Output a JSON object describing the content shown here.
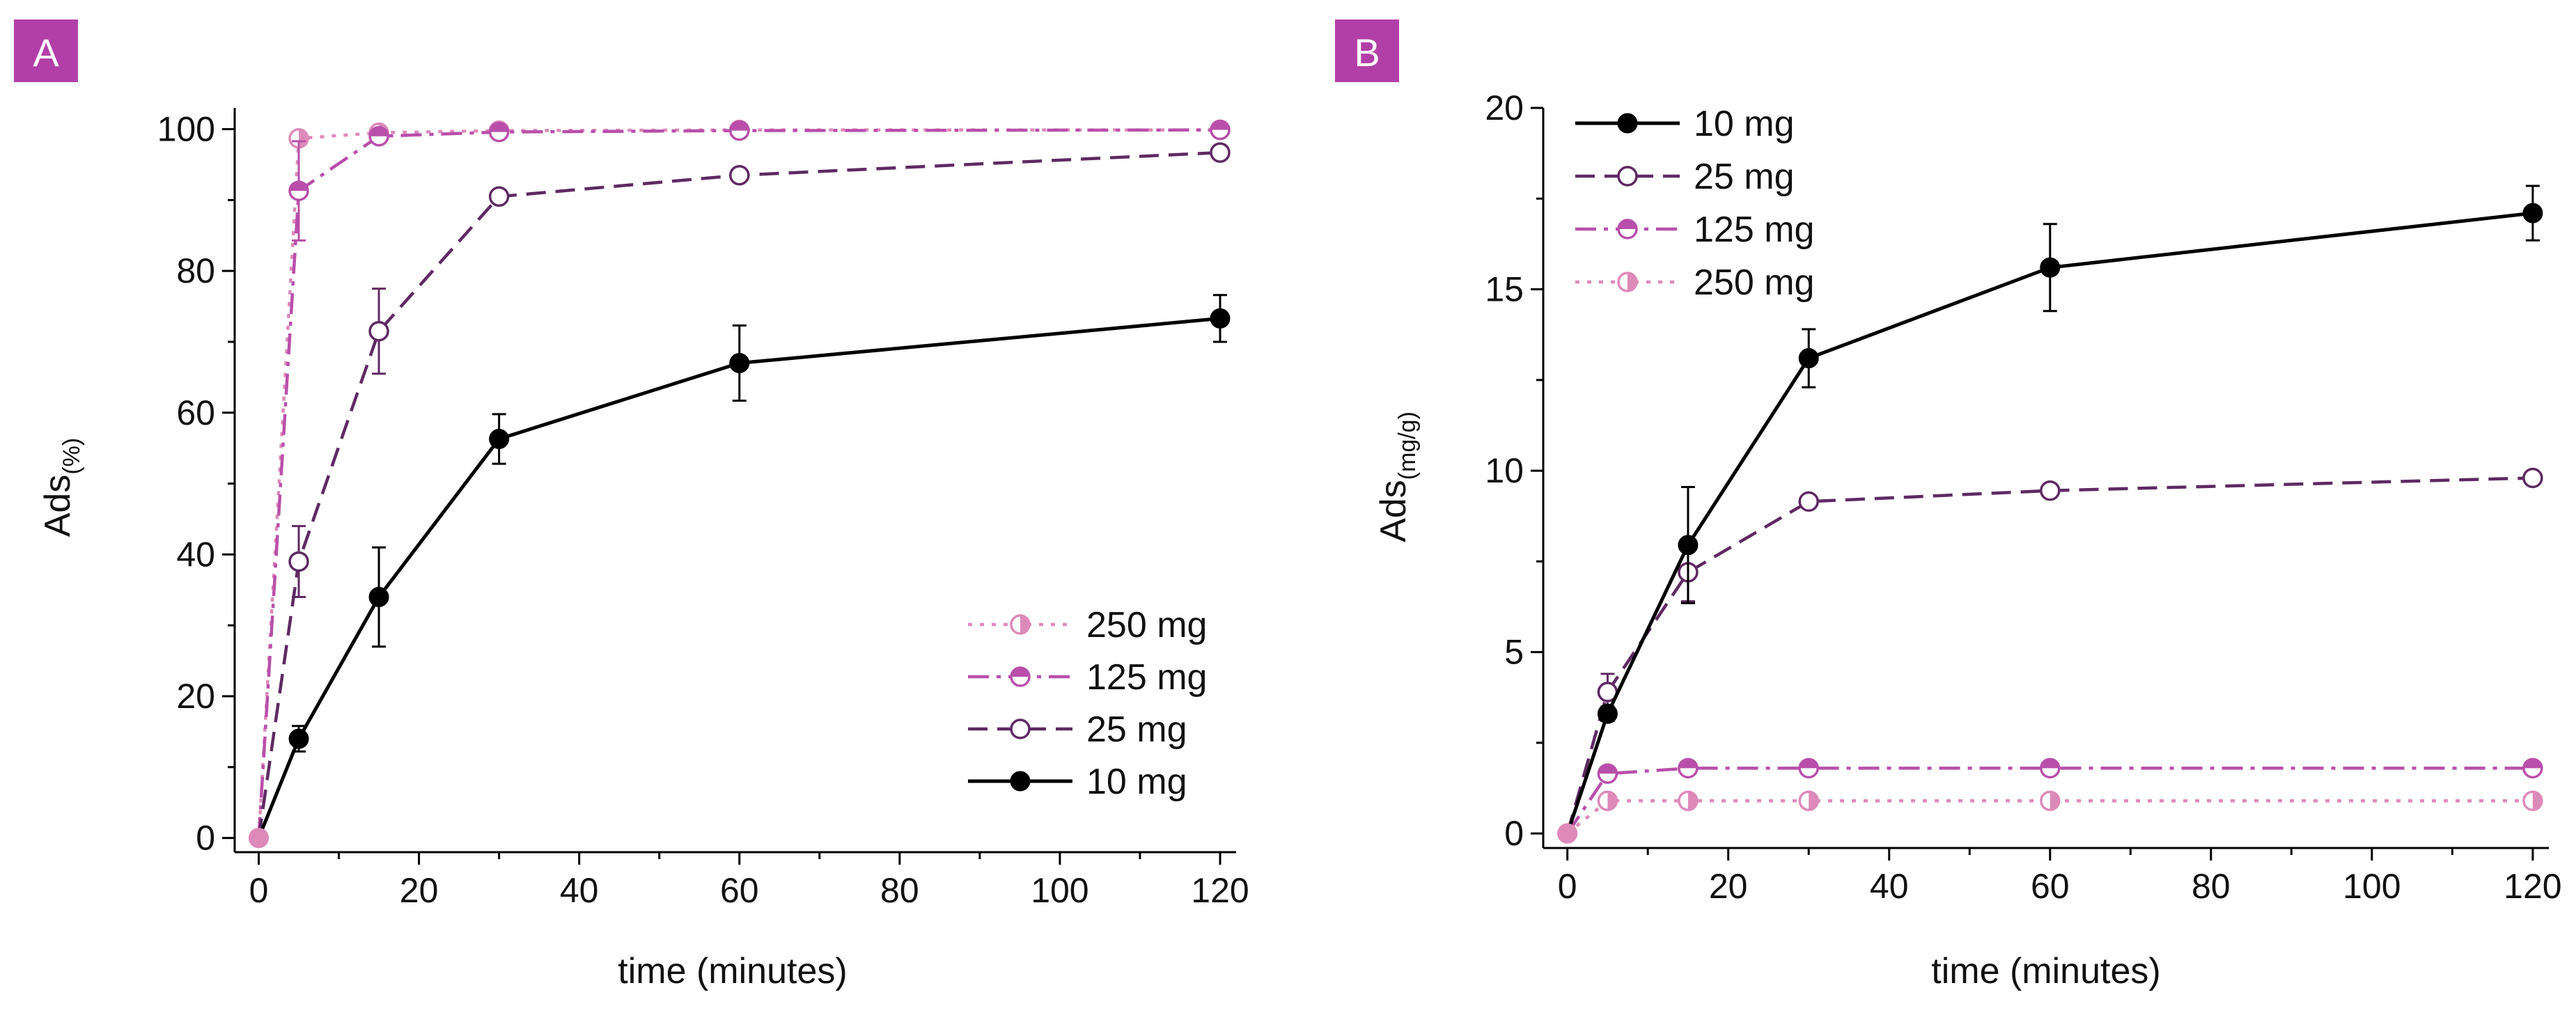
{
  "colors": {
    "10 mg": "#000000",
    "25 mg": "#5e2a62",
    "125 mg": "#b94fab",
    "250 mg": "#dd8ab9",
    "panel_badge": "#b23fa8"
  },
  "chart_data": [
    {
      "panel": "A",
      "type": "line",
      "title": "",
      "xlabel": "time (minutes)",
      "ylabel": "Ads",
      "ylabel_sub": "(%)",
      "xlim": [
        -3,
        122
      ],
      "ylim": [
        -2,
        103
      ],
      "xticks": [
        0,
        20,
        40,
        60,
        80,
        100,
        120
      ],
      "xticks_minor": [
        10,
        30,
        50,
        70,
        90,
        110
      ],
      "yticks": [
        0,
        20,
        40,
        60,
        80,
        100
      ],
      "yticks_minor": [
        10,
        30,
        50,
        70,
        90
      ],
      "grid": false,
      "legend_position": "bottom-right",
      "legend_order": [
        "250 mg",
        "125 mg",
        "25 mg",
        "10 mg"
      ],
      "series": [
        {
          "name": "10 mg",
          "style": "solid",
          "marker": "filled",
          "x": [
            0,
            5,
            15,
            30,
            60,
            120
          ],
          "y": [
            0,
            14,
            34,
            56.3,
            67,
            73.3
          ],
          "err": [
            0,
            1.8,
            7,
            3.5,
            5.3,
            3.3
          ]
        },
        {
          "name": "25 mg",
          "style": "dash",
          "marker": "open",
          "x": [
            0,
            5,
            15,
            30,
            60,
            120
          ],
          "y": [
            0,
            39,
            71.5,
            90.5,
            93.5,
            96.7
          ],
          "err": [
            0,
            5,
            6,
            0.5,
            0.4,
            0.4
          ]
        },
        {
          "name": "125 mg",
          "style": "dashdot",
          "marker": "half-top",
          "x": [
            0,
            5,
            15,
            30,
            60,
            120
          ],
          "y": [
            0,
            91.3,
            99,
            99.6,
            99.8,
            99.9
          ],
          "err": [
            0,
            7,
            0.3,
            0.2,
            0.2,
            0.2
          ]
        },
        {
          "name": "250 mg",
          "style": "dot",
          "marker": "half-right",
          "x": [
            0,
            5,
            15,
            30,
            60,
            120
          ],
          "y": [
            0,
            98.7,
            99.5,
            99.8,
            99.9,
            99.9
          ],
          "err": [
            0,
            0.3,
            0.2,
            0.2,
            0.2,
            0.2
          ]
        }
      ]
    },
    {
      "panel": "B",
      "type": "line",
      "title": "",
      "xlabel": "time (minutes)",
      "ylabel": "Ads",
      "ylabel_sub": "(mg/g)",
      "xlim": [
        -3,
        122
      ],
      "ylim": [
        -0.4,
        20
      ],
      "xticks": [
        0,
        20,
        40,
        60,
        80,
        100,
        120
      ],
      "xticks_minor": [
        10,
        30,
        50,
        70,
        90,
        110
      ],
      "yticks": [
        0,
        5,
        10,
        15,
        20
      ],
      "yticks_minor": [
        2.5,
        7.5,
        12.5,
        17.5
      ],
      "grid": false,
      "legend_position": "top-left",
      "legend_order": [
        "10 mg",
        "25 mg",
        "125 mg",
        "250 mg"
      ],
      "series": [
        {
          "name": "10 mg",
          "style": "solid",
          "marker": "filled",
          "x": [
            0,
            5,
            15,
            30,
            60,
            120
          ],
          "y": [
            0,
            3.3,
            7.95,
            13.1,
            15.6,
            17.1
          ],
          "err": [
            0,
            0.2,
            1.6,
            0.8,
            1.2,
            0.75
          ]
        },
        {
          "name": "25 mg",
          "style": "dash",
          "marker": "open",
          "x": [
            0,
            5,
            15,
            30,
            60,
            120
          ],
          "y": [
            0,
            3.9,
            7.2,
            9.15,
            9.45,
            9.8
          ],
          "err": [
            0,
            0.5,
            0.8,
            0.05,
            0.05,
            0.05
          ]
        },
        {
          "name": "125 mg",
          "style": "dashdot",
          "marker": "half-top",
          "x": [
            0,
            5,
            15,
            30,
            60,
            120
          ],
          "y": [
            0,
            1.65,
            1.8,
            1.8,
            1.8,
            1.8
          ],
          "err": [
            0,
            0.05,
            0.05,
            0.05,
            0.05,
            0.05
          ]
        },
        {
          "name": "250 mg",
          "style": "dot",
          "marker": "half-right",
          "x": [
            0,
            5,
            15,
            30,
            60,
            120
          ],
          "y": [
            0,
            0.9,
            0.9,
            0.9,
            0.9,
            0.9
          ],
          "err": [
            0,
            0.03,
            0.03,
            0.03,
            0.03,
            0.03
          ]
        }
      ]
    }
  ]
}
